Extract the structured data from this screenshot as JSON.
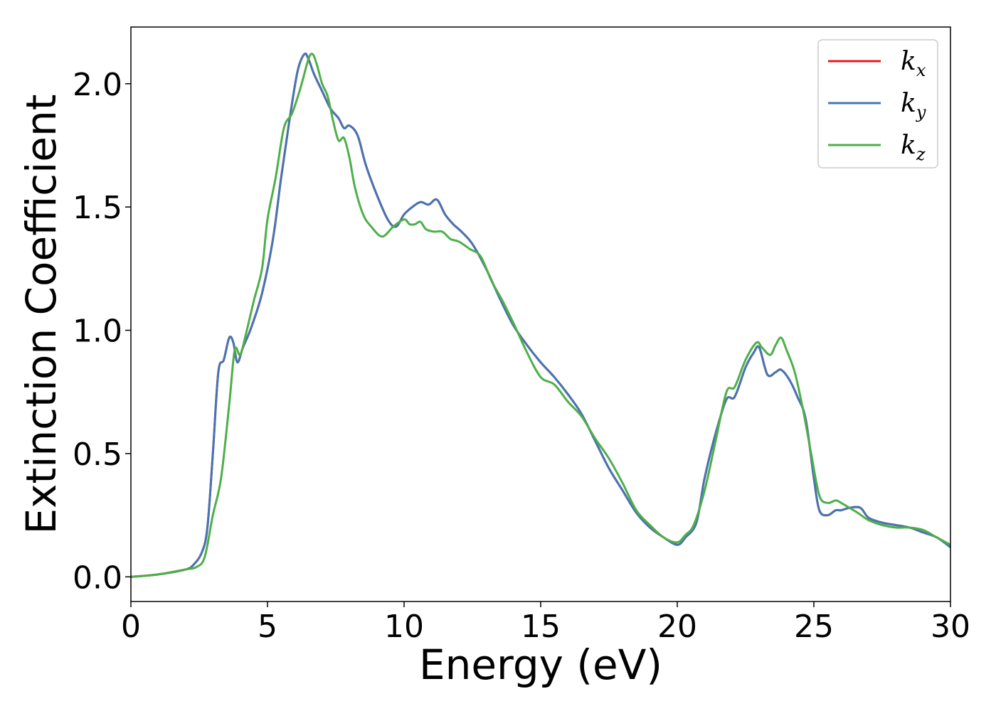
{
  "chart_data": {
    "type": "line",
    "xlabel": "Energy (eV)",
    "ylabel": "Extinction Coefficient",
    "xlim": [
      0,
      30
    ],
    "ylim": [
      -0.1,
      2.23
    ],
    "xticks": [
      0,
      5,
      10,
      15,
      20,
      25,
      30
    ],
    "yticks": [
      0.0,
      0.5,
      1.0,
      1.5,
      2.0
    ],
    "xtick_labels": [
      "0",
      "5",
      "10",
      "15",
      "20",
      "25",
      "30"
    ],
    "ytick_labels": [
      "0.0",
      "0.5",
      "1.0",
      "1.5",
      "2.0"
    ],
    "grid": false,
    "legend_position": "top-right",
    "series": [
      {
        "name": "kx",
        "label_base": "k",
        "label_sub": "x",
        "color": "#e41a1c",
        "x": [
          0,
          1,
          2,
          2.3,
          2.6,
          2.8,
          3.0,
          3.2,
          3.4,
          3.6,
          3.75,
          3.9,
          4.1,
          4.4,
          4.8,
          5.2,
          5.5,
          5.8,
          6.1,
          6.35,
          6.5,
          6.7,
          7.0,
          7.3,
          7.6,
          7.8,
          8.0,
          8.3,
          8.6,
          9.0,
          9.4,
          9.7,
          10.0,
          10.3,
          10.6,
          10.9,
          11.2,
          11.5,
          11.8,
          12.1,
          12.5,
          13.0,
          13.5,
          14.0,
          14.5,
          15.0,
          15.5,
          16.0,
          16.5,
          17.0,
          17.5,
          18.0,
          18.5,
          19.0,
          19.5,
          20.0,
          20.3,
          20.7,
          21.0,
          21.4,
          21.8,
          22.1,
          22.5,
          22.8,
          23.0,
          23.3,
          23.6,
          23.8,
          24.1,
          24.4,
          24.7,
          25.0,
          25.2,
          25.5,
          25.8,
          26.0,
          26.3,
          26.7,
          27.0,
          27.5,
          28.0,
          28.5,
          29.0,
          29.5,
          30.0
        ],
        "values": [
          0.0,
          0.01,
          0.03,
          0.05,
          0.1,
          0.2,
          0.5,
          0.83,
          0.88,
          0.97,
          0.95,
          0.87,
          0.93,
          1.01,
          1.15,
          1.37,
          1.62,
          1.85,
          2.05,
          2.12,
          2.1,
          2.04,
          1.97,
          1.9,
          1.86,
          1.82,
          1.83,
          1.79,
          1.67,
          1.55,
          1.45,
          1.42,
          1.47,
          1.5,
          1.52,
          1.51,
          1.53,
          1.47,
          1.43,
          1.4,
          1.35,
          1.25,
          1.13,
          1.02,
          0.94,
          0.87,
          0.81,
          0.74,
          0.66,
          0.55,
          0.44,
          0.35,
          0.26,
          0.2,
          0.16,
          0.13,
          0.16,
          0.22,
          0.4,
          0.58,
          0.72,
          0.73,
          0.85,
          0.91,
          0.93,
          0.82,
          0.83,
          0.84,
          0.8,
          0.73,
          0.64,
          0.4,
          0.27,
          0.25,
          0.27,
          0.27,
          0.28,
          0.28,
          0.24,
          0.22,
          0.21,
          0.2,
          0.18,
          0.16,
          0.12
        ]
      },
      {
        "name": "ky",
        "label_base": "k",
        "label_sub": "y",
        "color": "#4575b4",
        "x": [
          0,
          1,
          2,
          2.3,
          2.6,
          2.8,
          3.0,
          3.2,
          3.4,
          3.6,
          3.75,
          3.9,
          4.1,
          4.4,
          4.8,
          5.2,
          5.5,
          5.8,
          6.1,
          6.35,
          6.5,
          6.7,
          7.0,
          7.3,
          7.6,
          7.8,
          8.0,
          8.3,
          8.6,
          9.0,
          9.4,
          9.7,
          10.0,
          10.3,
          10.6,
          10.9,
          11.2,
          11.5,
          11.8,
          12.1,
          12.5,
          13.0,
          13.5,
          14.0,
          14.5,
          15.0,
          15.5,
          16.0,
          16.5,
          17.0,
          17.5,
          18.0,
          18.5,
          19.0,
          19.5,
          20.0,
          20.3,
          20.7,
          21.0,
          21.4,
          21.8,
          22.1,
          22.5,
          22.8,
          23.0,
          23.3,
          23.6,
          23.8,
          24.1,
          24.4,
          24.7,
          25.0,
          25.2,
          25.5,
          25.8,
          26.0,
          26.3,
          26.7,
          27.0,
          27.5,
          28.0,
          28.5,
          29.0,
          29.5,
          30.0
        ],
        "values": [
          0.0,
          0.01,
          0.03,
          0.05,
          0.1,
          0.2,
          0.5,
          0.83,
          0.88,
          0.97,
          0.95,
          0.87,
          0.93,
          1.01,
          1.15,
          1.37,
          1.62,
          1.85,
          2.05,
          2.12,
          2.1,
          2.04,
          1.97,
          1.9,
          1.86,
          1.82,
          1.83,
          1.79,
          1.67,
          1.55,
          1.45,
          1.42,
          1.47,
          1.5,
          1.52,
          1.51,
          1.53,
          1.47,
          1.43,
          1.4,
          1.35,
          1.25,
          1.13,
          1.02,
          0.94,
          0.87,
          0.81,
          0.74,
          0.66,
          0.55,
          0.44,
          0.35,
          0.26,
          0.2,
          0.16,
          0.13,
          0.16,
          0.22,
          0.4,
          0.58,
          0.72,
          0.73,
          0.85,
          0.91,
          0.93,
          0.82,
          0.83,
          0.84,
          0.8,
          0.73,
          0.64,
          0.4,
          0.27,
          0.25,
          0.27,
          0.27,
          0.28,
          0.28,
          0.24,
          0.22,
          0.21,
          0.2,
          0.18,
          0.16,
          0.12
        ]
      },
      {
        "name": "kz",
        "label_base": "k",
        "label_sub": "z",
        "color": "#4daf4a",
        "x": [
          0,
          1,
          2,
          2.4,
          2.7,
          3.0,
          3.3,
          3.6,
          3.8,
          4.0,
          4.2,
          4.5,
          4.8,
          5.0,
          5.3,
          5.6,
          5.9,
          6.2,
          6.5,
          6.65,
          6.8,
          7.0,
          7.2,
          7.4,
          7.6,
          7.8,
          8.0,
          8.2,
          8.5,
          8.8,
          9.2,
          9.6,
          10.0,
          10.2,
          10.4,
          10.6,
          10.8,
          11.1,
          11.4,
          11.7,
          12.0,
          12.4,
          12.8,
          13.2,
          13.6,
          14.0,
          14.5,
          15.0,
          15.5,
          16.0,
          16.5,
          17.0,
          17.5,
          18.0,
          18.5,
          19.0,
          19.5,
          20.0,
          20.3,
          20.6,
          21.0,
          21.4,
          21.8,
          22.1,
          22.5,
          22.9,
          23.1,
          23.4,
          23.6,
          23.8,
          24.0,
          24.3,
          24.6,
          24.9,
          25.2,
          25.5,
          25.8,
          26.0,
          26.3,
          26.6,
          27.0,
          27.5,
          28.0,
          28.5,
          29.0,
          29.5,
          30.0
        ],
        "values": [
          0.0,
          0.01,
          0.03,
          0.04,
          0.08,
          0.25,
          0.4,
          0.7,
          0.92,
          0.9,
          0.98,
          1.12,
          1.25,
          1.45,
          1.62,
          1.82,
          1.88,
          1.98,
          2.1,
          2.12,
          2.08,
          2.0,
          1.95,
          1.85,
          1.77,
          1.78,
          1.7,
          1.58,
          1.47,
          1.42,
          1.38,
          1.42,
          1.45,
          1.43,
          1.43,
          1.44,
          1.41,
          1.4,
          1.4,
          1.37,
          1.36,
          1.33,
          1.3,
          1.2,
          1.12,
          1.03,
          0.91,
          0.81,
          0.78,
          0.71,
          0.65,
          0.56,
          0.48,
          0.38,
          0.27,
          0.21,
          0.16,
          0.14,
          0.17,
          0.21,
          0.35,
          0.55,
          0.75,
          0.77,
          0.88,
          0.95,
          0.93,
          0.9,
          0.94,
          0.97,
          0.92,
          0.83,
          0.68,
          0.5,
          0.33,
          0.3,
          0.31,
          0.3,
          0.28,
          0.26,
          0.23,
          0.21,
          0.2,
          0.2,
          0.19,
          0.16,
          0.13
        ]
      }
    ]
  }
}
